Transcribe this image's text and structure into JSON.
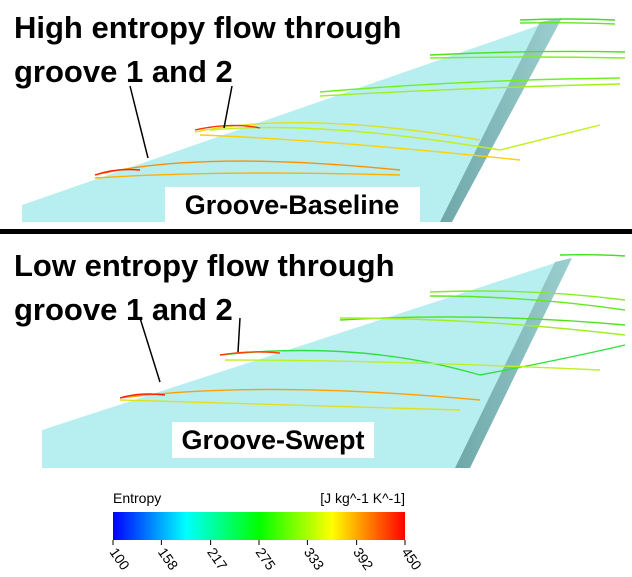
{
  "panels": [
    {
      "title": [
        "High entropy flow through",
        "groove 1 and 2"
      ],
      "label": "Groove-Baseline"
    },
    {
      "title": [
        "Low entropy flow through",
        "groove 1 and 2"
      ],
      "label": "Groove-Swept"
    }
  ],
  "colorbar": {
    "title": "Entropy",
    "unit": "[J kg^-1 K^-1]",
    "range": [
      100,
      450
    ],
    "ticks": [
      100,
      158,
      217,
      275,
      333,
      392,
      450
    ]
  }
}
